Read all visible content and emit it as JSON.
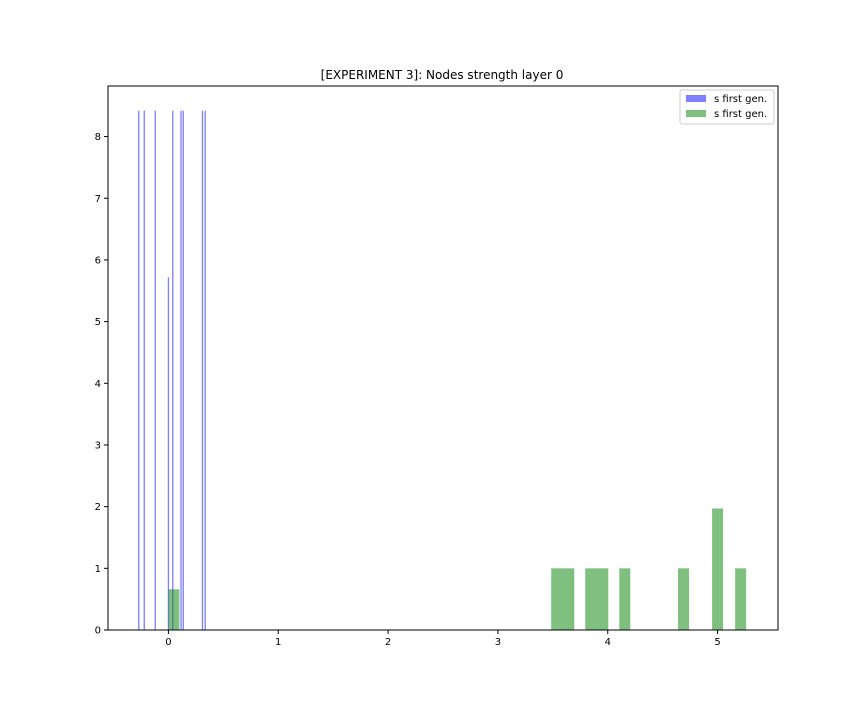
{
  "chart_data": {
    "type": "bar",
    "title": "[EXPERIMENT 3]: Nodes strength layer 0",
    "xlabel": "",
    "ylabel": "",
    "xlim": [
      -0.55,
      5.55
    ],
    "ylim": [
      0,
      8.82
    ],
    "xticks": [
      0,
      1,
      2,
      3,
      4,
      5
    ],
    "yticks": [
      0,
      1,
      2,
      3,
      4,
      5,
      6,
      7,
      8
    ],
    "grid": false,
    "legend_position": "top-right",
    "series": [
      {
        "name": "s first gen.",
        "color": "#0000ff",
        "alpha": 0.5,
        "bars": [
          {
            "x": -0.27,
            "w": 0.012,
            "h": 8.42
          },
          {
            "x": -0.22,
            "w": 0.012,
            "h": 8.42
          },
          {
            "x": -0.12,
            "w": 0.012,
            "h": 8.42
          },
          {
            "x": 0.0,
            "w": 0.012,
            "h": 5.72
          },
          {
            "x": 0.04,
            "w": 0.012,
            "h": 8.42
          },
          {
            "x": 0.115,
            "w": 0.012,
            "h": 8.42
          },
          {
            "x": 0.135,
            "w": 0.012,
            "h": 8.42
          },
          {
            "x": 0.31,
            "w": 0.012,
            "h": 8.42
          },
          {
            "x": 0.335,
            "w": 0.012,
            "h": 8.42
          }
        ]
      },
      {
        "name": "s first gen.",
        "color": "#008000",
        "alpha": 0.5,
        "bars": [
          {
            "x": 0.05,
            "w": 0.1,
            "h": 0.66
          },
          {
            "x": 3.59,
            "w": 0.21,
            "h": 1.0
          },
          {
            "x": 3.9,
            "w": 0.21,
            "h": 1.0
          },
          {
            "x": 4.155,
            "w": 0.1,
            "h": 1.0
          },
          {
            "x": 4.69,
            "w": 0.1,
            "h": 1.0
          },
          {
            "x": 5.0,
            "w": 0.1,
            "h": 1.97
          },
          {
            "x": 5.21,
            "w": 0.1,
            "h": 1.0
          }
        ]
      }
    ]
  }
}
